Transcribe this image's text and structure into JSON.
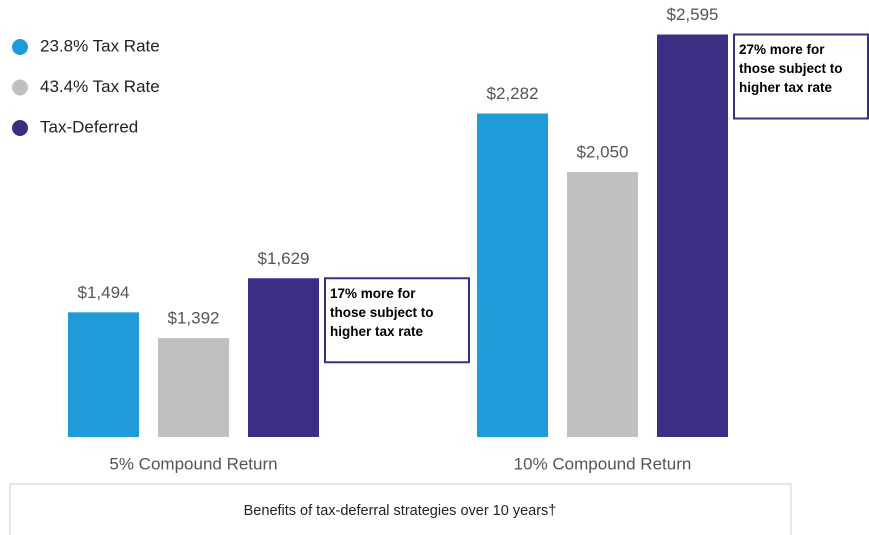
{
  "chart_data": {
    "type": "bar",
    "categories": [
      "5% Compound Return",
      "10% Compound Return"
    ],
    "series": [
      {
        "name": "23.8% Tax Rate",
        "color": "#1f9bd7",
        "values": [
          1494,
          2282
        ],
        "value_labels": [
          "$1,494",
          "$2,282"
        ]
      },
      {
        "name": "43.4% Tax Rate",
        "color": "#c0c0c0",
        "values": [
          1392,
          2050
        ],
        "value_labels": [
          "$1,392",
          "$2,050"
        ]
      },
      {
        "name": "Tax-Deferred",
        "color": "#3b2f84",
        "values": [
          1629,
          2595
        ],
        "value_labels": [
          "$1,629",
          "$2,595"
        ]
      }
    ],
    "ylim": [
      1000,
      2700
    ],
    "annotations": [
      [
        "17% more for",
        "those subject to",
        "higher tax rate"
      ],
      [
        "27% more for",
        "those subject to",
        "higher tax rate"
      ]
    ],
    "footnote": "Benefits of tax-deferral strategies over 10 years†"
  }
}
